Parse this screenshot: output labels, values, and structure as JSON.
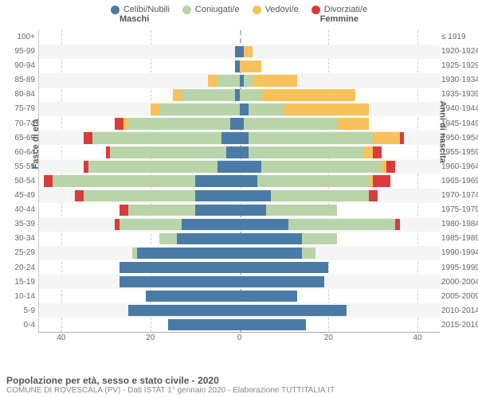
{
  "chart": {
    "type": "population_pyramid",
    "legend": [
      {
        "label": "Celibi/Nubili",
        "color": "#4a7ba6"
      },
      {
        "label": "Coniugati/e",
        "color": "#b9d4a8"
      },
      {
        "label": "Vedovi/e",
        "color": "#f7c15b"
      },
      {
        "label": "Divorziati/e",
        "color": "#d93c3c"
      }
    ],
    "header_male": "Maschi",
    "header_female": "Femmine",
    "y_label_left": "Fasce di età",
    "y_label_right": "Anni di nascita",
    "x_ticks": [
      40,
      20,
      0,
      20,
      40
    ],
    "x_max": 45,
    "age_labels": [
      "100+",
      "95-99",
      "90-94",
      "85-89",
      "80-84",
      "75-79",
      "70-74",
      "65-69",
      "60-64",
      "55-59",
      "50-54",
      "45-49",
      "40-44",
      "35-39",
      "30-34",
      "25-29",
      "20-24",
      "15-19",
      "10-14",
      "5-9",
      "0-4"
    ],
    "birth_labels": [
      "≤ 1919",
      "1920-1924",
      "1925-1929",
      "1930-1934",
      "1935-1939",
      "1940-1944",
      "1945-1949",
      "1950-1954",
      "1955-1959",
      "1960-1964",
      "1965-1969",
      "1970-1974",
      "1975-1979",
      "1980-1984",
      "1985-1989",
      "1990-1994",
      "1995-1999",
      "2000-2004",
      "2005-2009",
      "2010-2014",
      "2015-2019"
    ],
    "rows": [
      {
        "m": [
          0,
          0,
          0,
          0
        ],
        "f": [
          0,
          0,
          0,
          0
        ]
      },
      {
        "m": [
          1,
          0,
          0,
          0
        ],
        "f": [
          1,
          0,
          2,
          0
        ]
      },
      {
        "m": [
          1,
          0,
          0,
          0
        ],
        "f": [
          0,
          0,
          5,
          0
        ]
      },
      {
        "m": [
          0,
          5,
          2,
          0
        ],
        "f": [
          1,
          2,
          10,
          0
        ]
      },
      {
        "m": [
          1,
          12,
          2,
          0
        ],
        "f": [
          0,
          5,
          21,
          0
        ]
      },
      {
        "m": [
          0,
          18,
          2,
          0
        ],
        "f": [
          2,
          8,
          19,
          0
        ]
      },
      {
        "m": [
          2,
          23,
          1,
          2
        ],
        "f": [
          1,
          21,
          7,
          0
        ]
      },
      {
        "m": [
          4,
          29,
          0,
          2
        ],
        "f": [
          2,
          28,
          6,
          1
        ]
      },
      {
        "m": [
          3,
          26,
          0,
          1
        ],
        "f": [
          2,
          26,
          2,
          2
        ]
      },
      {
        "m": [
          5,
          29,
          0,
          1
        ],
        "f": [
          5,
          27,
          1,
          2
        ]
      },
      {
        "m": [
          10,
          32,
          0,
          2
        ],
        "f": [
          4,
          25,
          1,
          4
        ]
      },
      {
        "m": [
          10,
          25,
          0,
          2
        ],
        "f": [
          7,
          22,
          0,
          2
        ]
      },
      {
        "m": [
          10,
          15,
          0,
          2
        ],
        "f": [
          6,
          16,
          0,
          0
        ]
      },
      {
        "m": [
          13,
          14,
          0,
          1
        ],
        "f": [
          11,
          24,
          0,
          1
        ]
      },
      {
        "m": [
          14,
          4,
          0,
          0
        ],
        "f": [
          14,
          8,
          0,
          0
        ]
      },
      {
        "m": [
          23,
          1,
          0,
          0
        ],
        "f": [
          14,
          3,
          0,
          0
        ]
      },
      {
        "m": [
          27,
          0,
          0,
          0
        ],
        "f": [
          20,
          0,
          0,
          0
        ]
      },
      {
        "m": [
          27,
          0,
          0,
          0
        ],
        "f": [
          19,
          0,
          0,
          0
        ]
      },
      {
        "m": [
          21,
          0,
          0,
          0
        ],
        "f": [
          13,
          0,
          0,
          0
        ]
      },
      {
        "m": [
          25,
          0,
          0,
          0
        ],
        "f": [
          24,
          0,
          0,
          0
        ]
      },
      {
        "m": [
          16,
          0,
          0,
          0
        ],
        "f": [
          15,
          0,
          0,
          0
        ]
      }
    ],
    "background_color": "#ffffff",
    "stripe_color": "#f5f5f5",
    "grid_color": "#cccccc",
    "axis_font_size": 10,
    "label_font_size": 11
  },
  "footer": {
    "title": "Popolazione per età, sesso e stato civile - 2020",
    "subtitle": "COMUNE DI ROVESCALA (PV) - Dati ISTAT 1° gennaio 2020 - Elaborazione TUTTITALIA.IT"
  }
}
